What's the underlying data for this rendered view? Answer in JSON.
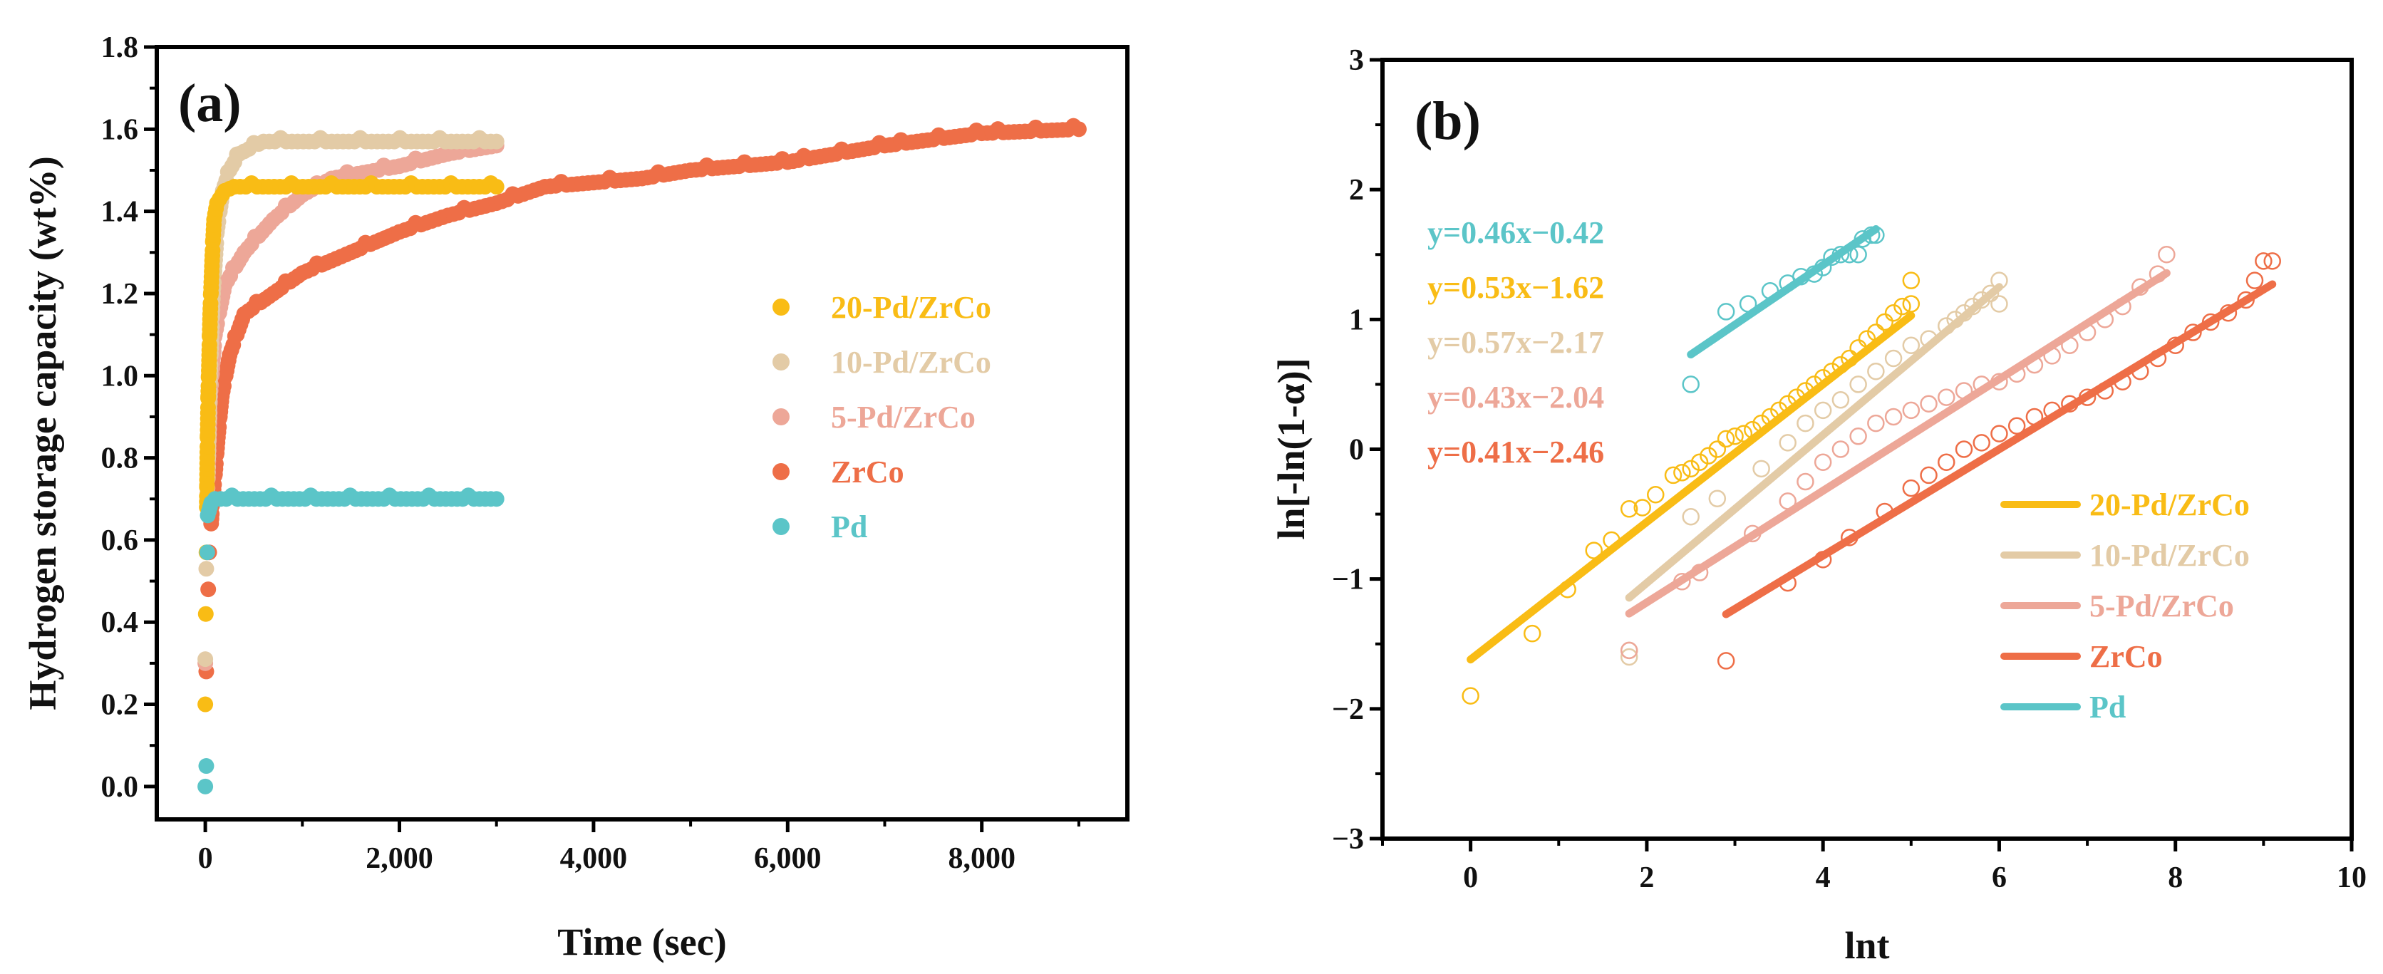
{
  "chart_data": [
    {
      "type": "scatter",
      "panel_label": "(a)",
      "xlabel": "Time (sec)",
      "ylabel": "Hydrogen storage capacity (wt%)",
      "xlim": [
        -500,
        9500
      ],
      "ylim": [
        -0.08,
        1.8
      ],
      "xticks": [
        0,
        2000,
        4000,
        6000,
        8000
      ],
      "xtick_labels": [
        "0",
        "2,000",
        "4,000",
        "6,000",
        "8,000"
      ],
      "xminor_step": 1000,
      "yticks": [
        0.0,
        0.2,
        0.4,
        0.6,
        0.8,
        1.0,
        1.2,
        1.4,
        1.6,
        1.8
      ],
      "ytick_labels": [
        "0.0",
        "0.2",
        "0.4",
        "0.6",
        "0.8",
        "1.0",
        "1.2",
        "1.4",
        "1.6",
        "1.8"
      ],
      "yminor_step": 0.1,
      "legend_position": "center-right",
      "series": [
        {
          "name": "20-Pd/ZrCo",
          "color": "#F9BC15",
          "discrete": [
            [
              0,
              0.2
            ],
            [
              5,
              0.42
            ],
            [
              12,
              0.57
            ]
          ],
          "curve": [
            [
              15,
              0.68
            ],
            [
              20,
              0.8
            ],
            [
              30,
              0.95
            ],
            [
              40,
              1.05
            ],
            [
              50,
              1.15
            ],
            [
              70,
              1.28
            ],
            [
              90,
              1.38
            ],
            [
              120,
              1.42
            ],
            [
              200,
              1.45
            ],
            [
              300,
              1.46
            ],
            [
              3000,
              1.46
            ]
          ]
        },
        {
          "name": "10-Pd/ZrCo",
          "color": "#E3CBA6",
          "discrete": [
            [
              0,
              0.31
            ],
            [
              10,
              0.53
            ]
          ],
          "curve": [
            [
              25,
              0.75
            ],
            [
              50,
              1.0
            ],
            [
              80,
              1.2
            ],
            [
              120,
              1.35
            ],
            [
              180,
              1.45
            ],
            [
              250,
              1.5
            ],
            [
              350,
              1.54
            ],
            [
              600,
              1.57
            ],
            [
              3000,
              1.57
            ]
          ]
        },
        {
          "name": "5-Pd/ZrCo",
          "color": "#EDA798",
          "discrete": [
            [
              0,
              0.3
            ]
          ],
          "curve": [
            [
              20,
              0.7
            ],
            [
              50,
              0.95
            ],
            [
              100,
              1.1
            ],
            [
              200,
              1.22
            ],
            [
              400,
              1.3
            ],
            [
              700,
              1.38
            ],
            [
              1000,
              1.44
            ],
            [
              1300,
              1.48
            ],
            [
              2000,
              1.51
            ],
            [
              2500,
              1.54
            ],
            [
              3000,
              1.56
            ]
          ]
        },
        {
          "name": "ZrCo",
          "color": "#EE6E47",
          "discrete": [
            [
              10,
              0.28
            ],
            [
              30,
              0.48
            ],
            [
              40,
              0.57
            ]
          ],
          "curve": [
            [
              60,
              0.64
            ],
            [
              80,
              0.71
            ],
            [
              100,
              0.76
            ],
            [
              130,
              0.85
            ],
            [
              170,
              0.95
            ],
            [
              250,
              1.05
            ],
            [
              400,
              1.15
            ],
            [
              700,
              1.2
            ],
            [
              1000,
              1.25
            ],
            [
              1500,
              1.3
            ],
            [
              2000,
              1.35
            ],
            [
              2500,
              1.39
            ],
            [
              3000,
              1.42
            ],
            [
              3500,
              1.46
            ],
            [
              4000,
              1.47
            ],
            [
              4500,
              1.48
            ],
            [
              5000,
              1.5
            ],
            [
              6000,
              1.52
            ],
            [
              7000,
              1.56
            ],
            [
              8000,
              1.59
            ],
            [
              9000,
              1.6
            ]
          ]
        },
        {
          "name": "Pd",
          "color": "#5BC5C8",
          "discrete": [
            [
              0,
              0.0
            ],
            [
              10,
              0.05
            ],
            [
              20,
              0.57
            ]
          ],
          "curve": [
            [
              25,
              0.66
            ],
            [
              60,
              0.69
            ],
            [
              100,
              0.7
            ],
            [
              3000,
              0.7
            ]
          ]
        }
      ]
    },
    {
      "type": "scatter",
      "panel_label": "(b)",
      "xlabel": "lnt",
      "ylabel": "ln[-ln(1-α)]",
      "xlim": [
        -1,
        10
      ],
      "ylim": [
        -3,
        3
      ],
      "xticks": [
        0,
        2,
        4,
        6,
        8,
        10
      ],
      "xtick_labels": [
        "0",
        "2",
        "4",
        "6",
        "8",
        "10"
      ],
      "xminor_step": 1,
      "yticks": [
        -3,
        -2,
        -1,
        0,
        1,
        2,
        3
      ],
      "ytick_labels": [
        "−3",
        "−2",
        "−1",
        "0",
        "1",
        "2",
        "3"
      ],
      "yminor_step": 0.5,
      "legend_position": "lower-right",
      "equations": [
        "y=0.46x−0.42",
        "y=0.53x−1.62",
        "y=0.57x−2.17",
        "y=0.43x−2.04",
        "y=0.41x−2.46"
      ],
      "equation_colors": [
        "#5BC5C8",
        "#F9BC15",
        "#E3CBA6",
        "#EDA798",
        "#EE6E47"
      ],
      "series": [
        {
          "name": "20-Pd/ZrCo",
          "color": "#F9BC15",
          "slope": 0.53,
          "intercept": -1.62,
          "fit_range": [
            0,
            5
          ],
          "points": [
            [
              0,
              -1.9
            ],
            [
              0.7,
              -1.42
            ],
            [
              1.1,
              -1.08
            ],
            [
              1.4,
              -0.78
            ],
            [
              1.6,
              -0.7
            ],
            [
              1.8,
              -0.46
            ],
            [
              1.95,
              -0.45
            ],
            [
              2.1,
              -0.35
            ],
            [
              2.3,
              -0.2
            ],
            [
              2.4,
              -0.18
            ],
            [
              2.5,
              -0.15
            ],
            [
              2.6,
              -0.1
            ],
            [
              2.7,
              -0.05
            ],
            [
              2.8,
              0
            ],
            [
              2.9,
              0.08
            ],
            [
              3.0,
              0.1
            ],
            [
              3.1,
              0.12
            ],
            [
              3.2,
              0.15
            ],
            [
              3.3,
              0.2
            ],
            [
              3.4,
              0.25
            ],
            [
              3.5,
              0.3
            ],
            [
              3.6,
              0.35
            ],
            [
              3.7,
              0.4
            ],
            [
              3.8,
              0.45
            ],
            [
              3.9,
              0.5
            ],
            [
              4.0,
              0.55
            ],
            [
              4.1,
              0.6
            ],
            [
              4.2,
              0.65
            ],
            [
              4.3,
              0.7
            ],
            [
              4.4,
              0.78
            ],
            [
              4.5,
              0.85
            ],
            [
              4.6,
              0.9
            ],
            [
              4.7,
              0.98
            ],
            [
              4.8,
              1.05
            ],
            [
              4.9,
              1.1
            ],
            [
              5.0,
              1.12
            ],
            [
              5.0,
              1.3
            ]
          ]
        },
        {
          "name": "10-Pd/ZrCo",
          "color": "#E3CBA6",
          "slope": 0.57,
          "intercept": -2.17,
          "fit_range": [
            1.8,
            6
          ],
          "points": [
            [
              1.8,
              -1.55
            ],
            [
              1.8,
              -1.6
            ],
            [
              2.5,
              -0.52
            ],
            [
              2.8,
              -0.38
            ],
            [
              3.3,
              -0.15
            ],
            [
              3.6,
              0.05
            ],
            [
              3.8,
              0.2
            ],
            [
              4.0,
              0.3
            ],
            [
              4.2,
              0.38
            ],
            [
              4.4,
              0.5
            ],
            [
              4.6,
              0.6
            ],
            [
              4.8,
              0.7
            ],
            [
              5.0,
              0.8
            ],
            [
              5.2,
              0.85
            ],
            [
              5.4,
              0.95
            ],
            [
              5.5,
              1.0
            ],
            [
              5.6,
              1.05
            ],
            [
              5.7,
              1.1
            ],
            [
              5.8,
              1.15
            ],
            [
              5.9,
              1.2
            ],
            [
              6.0,
              1.3
            ],
            [
              6.0,
              1.12
            ]
          ]
        },
        {
          "name": "5-Pd/ZrCo",
          "color": "#EDA798",
          "slope": 0.43,
          "intercept": -2.04,
          "fit_range": [
            1.8,
            7.9
          ],
          "points": [
            [
              1.8,
              -1.55
            ],
            [
              2.4,
              -1.02
            ],
            [
              2.6,
              -0.95
            ],
            [
              3.2,
              -0.65
            ],
            [
              3.6,
              -0.4
            ],
            [
              3.8,
              -0.25
            ],
            [
              4.0,
              -0.1
            ],
            [
              4.2,
              0.0
            ],
            [
              4.4,
              0.1
            ],
            [
              4.6,
              0.2
            ],
            [
              4.8,
              0.25
            ],
            [
              5.0,
              0.3
            ],
            [
              5.2,
              0.35
            ],
            [
              5.4,
              0.4
            ],
            [
              5.6,
              0.45
            ],
            [
              5.8,
              0.5
            ],
            [
              6.0,
              0.52
            ],
            [
              6.2,
              0.58
            ],
            [
              6.4,
              0.65
            ],
            [
              6.6,
              0.72
            ],
            [
              6.8,
              0.8
            ],
            [
              7.0,
              0.9
            ],
            [
              7.2,
              1.0
            ],
            [
              7.4,
              1.1
            ],
            [
              7.6,
              1.25
            ],
            [
              7.8,
              1.35
            ],
            [
              7.9,
              1.5
            ]
          ]
        },
        {
          "name": "ZrCo",
          "color": "#EE6E47",
          "slope": 0.41,
          "intercept": -2.46,
          "fit_range": [
            2.9,
            9.1
          ],
          "points": [
            [
              2.9,
              -1.63
            ],
            [
              3.6,
              -1.03
            ],
            [
              4.0,
              -0.85
            ],
            [
              4.3,
              -0.68
            ],
            [
              4.7,
              -0.48
            ],
            [
              5.0,
              -0.3
            ],
            [
              5.2,
              -0.2
            ],
            [
              5.4,
              -0.1
            ],
            [
              5.6,
              0.0
            ],
            [
              5.8,
              0.05
            ],
            [
              6.0,
              0.12
            ],
            [
              6.2,
              0.18
            ],
            [
              6.4,
              0.25
            ],
            [
              6.6,
              0.3
            ],
            [
              6.8,
              0.35
            ],
            [
              7.0,
              0.4
            ],
            [
              7.2,
              0.45
            ],
            [
              7.4,
              0.52
            ],
            [
              7.6,
              0.6
            ],
            [
              7.8,
              0.7
            ],
            [
              8.0,
              0.8
            ],
            [
              8.2,
              0.9
            ],
            [
              8.4,
              0.98
            ],
            [
              8.6,
              1.05
            ],
            [
              8.8,
              1.15
            ],
            [
              8.9,
              1.3
            ],
            [
              9.0,
              1.45
            ],
            [
              9.1,
              1.45
            ]
          ]
        },
        {
          "name": "Pd",
          "color": "#5BC5C8",
          "slope": 0.46,
          "intercept": -0.42,
          "fit_range": [
            2.5,
            4.6
          ],
          "points": [
            [
              2.5,
              0.5
            ],
            [
              2.9,
              1.06
            ],
            [
              3.15,
              1.12
            ],
            [
              3.4,
              1.22
            ],
            [
              3.6,
              1.28
            ],
            [
              3.75,
              1.33
            ],
            [
              3.9,
              1.35
            ],
            [
              4.0,
              1.4
            ],
            [
              4.1,
              1.48
            ],
            [
              4.2,
              1.5
            ],
            [
              4.3,
              1.5
            ],
            [
              4.4,
              1.5
            ],
            [
              4.45,
              1.62
            ],
            [
              4.55,
              1.65
            ],
            [
              4.6,
              1.65
            ]
          ]
        }
      ]
    }
  ]
}
